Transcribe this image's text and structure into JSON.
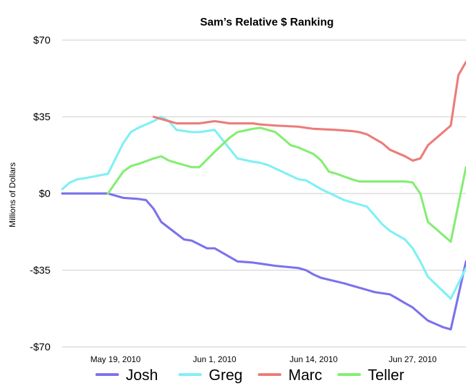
{
  "chart_data": {
    "type": "line",
    "title": "Sam’s Relative $ Ranking",
    "ylabel": "Millions of Dollars",
    "xlabel": "",
    "ylim": [
      -70,
      70
    ],
    "y_ticks": [
      {
        "value": 70,
        "label": "$70"
      },
      {
        "value": 35,
        "label": "$35"
      },
      {
        "value": 0,
        "label": "$0"
      },
      {
        "value": -35,
        "label": "-$35"
      },
      {
        "value": -70,
        "label": "-$70"
      }
    ],
    "x_tick_labels": [
      "May 19, 2010",
      "Jun 1, 2010",
      "Jun 14, 2010",
      "Jun 27, 2010"
    ],
    "x_tick_dates": [
      "2010-05-19",
      "2010-06-01",
      "2010-06-14",
      "2010-06-27"
    ],
    "xlim": [
      "2010-05-12",
      "2010-07-04"
    ],
    "grid": "horizontal",
    "legend_position": "bottom",
    "series": [
      {
        "name": "Josh",
        "color": "#7b72ec",
        "x": [
          "2010-05-12",
          "2010-05-13",
          "2010-05-15",
          "2010-05-16",
          "2010-05-18",
          "2010-05-20",
          "2010-05-22",
          "2010-05-23",
          "2010-05-24",
          "2010-05-25",
          "2010-05-28",
          "2010-05-29",
          "2010-05-31",
          "2010-06-01",
          "2010-06-04",
          "2010-06-06",
          "2010-06-07",
          "2010-06-09",
          "2010-06-12",
          "2010-06-13",
          "2010-06-14",
          "2010-06-15",
          "2010-06-18",
          "2010-06-19",
          "2010-06-21",
          "2010-06-22",
          "2010-06-24",
          "2010-06-25",
          "2010-06-26",
          "2010-06-27",
          "2010-06-29",
          "2010-06-30",
          "2010-07-01",
          "2010-07-02",
          "2010-07-04"
        ],
        "values": [
          0,
          0,
          0,
          0,
          0,
          -2,
          -2.5,
          -3,
          -7,
          -13,
          -21,
          -21.5,
          -25,
          -25,
          -31,
          -31.5,
          -32,
          -33,
          -34,
          -35,
          -37,
          -38.5,
          -41,
          -42,
          -44,
          -45,
          -46,
          -48,
          -50,
          -52,
          -58,
          -59.5,
          -61,
          -62,
          -31
        ]
      },
      {
        "name": "Greg",
        "color": "#7ff0f5",
        "x": [
          "2010-05-12",
          "2010-05-13",
          "2010-05-14",
          "2010-05-15",
          "2010-05-18",
          "2010-05-20",
          "2010-05-21",
          "2010-05-22",
          "2010-05-24",
          "2010-05-25",
          "2010-05-26",
          "2010-05-27",
          "2010-05-29",
          "2010-05-30",
          "2010-06-01",
          "2010-06-04",
          "2010-06-06",
          "2010-06-07",
          "2010-06-08",
          "2010-06-12",
          "2010-06-13",
          "2010-06-14",
          "2010-06-15",
          "2010-06-18",
          "2010-06-19",
          "2010-06-20",
          "2010-06-21",
          "2010-06-23",
          "2010-06-24",
          "2010-06-26",
          "2010-06-27",
          "2010-06-28",
          "2010-06-29",
          "2010-07-02",
          "2010-07-04"
        ],
        "values": [
          2,
          5,
          6.5,
          7,
          9,
          23,
          28,
          30,
          33,
          35,
          33,
          29,
          28,
          28,
          29,
          16,
          14.5,
          14,
          13,
          6.5,
          6,
          4,
          2,
          -3,
          -4,
          -5,
          -6,
          -14,
          -17,
          -21,
          -25,
          -31,
          -38,
          -48,
          -34
        ]
      },
      {
        "name": "Marc",
        "color": "#ec7c78",
        "x": [
          "2010-05-24",
          "2010-05-25",
          "2010-05-26",
          "2010-05-27",
          "2010-05-29",
          "2010-05-30",
          "2010-06-01",
          "2010-06-03",
          "2010-06-04",
          "2010-06-06",
          "2010-06-07",
          "2010-06-09",
          "2010-06-12",
          "2010-06-13",
          "2010-06-14",
          "2010-06-17",
          "2010-06-19",
          "2010-06-20",
          "2010-06-21",
          "2010-06-23",
          "2010-06-24",
          "2010-06-26",
          "2010-06-27",
          "2010-06-28",
          "2010-06-29",
          "2010-07-02",
          "2010-07-03",
          "2010-07-04"
        ],
        "values": [
          35,
          34,
          33,
          32,
          32,
          32,
          33,
          32,
          32,
          32,
          31.5,
          31,
          30.5,
          30,
          29.5,
          29,
          28.5,
          28,
          27,
          23,
          20,
          17,
          15,
          16,
          22,
          31,
          54,
          60
        ]
      },
      {
        "name": "Teller",
        "color": "#84ee72",
        "x": [
          "2010-05-18",
          "2010-05-20",
          "2010-05-21",
          "2010-05-22",
          "2010-05-24",
          "2010-05-25",
          "2010-05-26",
          "2010-05-27",
          "2010-05-29",
          "2010-05-30",
          "2010-06-01",
          "2010-06-03",
          "2010-06-04",
          "2010-06-06",
          "2010-06-07",
          "2010-06-09",
          "2010-06-11",
          "2010-06-12",
          "2010-06-13",
          "2010-06-14",
          "2010-06-15",
          "2010-06-16",
          "2010-06-17",
          "2010-06-19",
          "2010-06-20",
          "2010-06-24",
          "2010-06-26",
          "2010-06-27",
          "2010-06-28",
          "2010-06-29",
          "2010-07-02",
          "2010-07-04"
        ],
        "values": [
          0,
          10,
          12.5,
          13.5,
          16,
          17,
          15,
          14,
          12,
          12,
          19,
          25.5,
          28,
          29.5,
          30,
          28,
          22,
          21,
          19.5,
          18,
          15,
          10,
          9,
          6.5,
          5.5,
          5.5,
          5.5,
          5,
          0,
          -13,
          -22,
          12
        ]
      }
    ]
  }
}
